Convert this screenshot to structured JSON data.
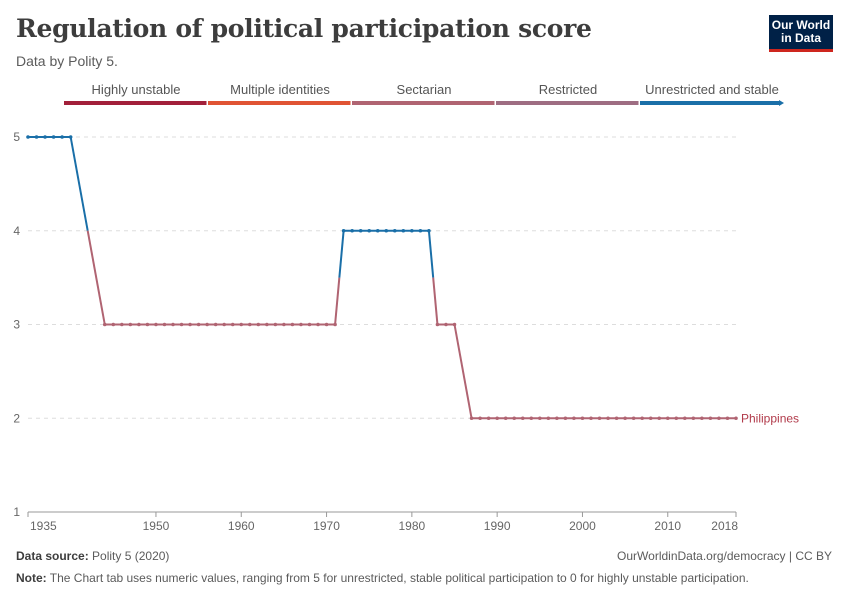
{
  "header": {
    "title": "Regulation of political participation score",
    "subtitle": "Data by Polity 5.",
    "logo_line1": "Our World",
    "logo_line2": "in Data"
  },
  "footer": {
    "source_label": "Data source:",
    "source_value": "Polity 5 (2020)",
    "link": "OurWorldinData.org/democracy | CC BY",
    "note_label": "Note:",
    "note_value": "The Chart tab uses numeric values, ranging from 5 for unrestricted, stable political participation to 0 for highly unstable participation."
  },
  "colors": {
    "unrestricted": "#1a6fa8",
    "sectarian": "#b06472",
    "highly_unstable": "#a2203a",
    "multiple_identities": "#e05434",
    "restricted": "#9e6d82",
    "grid": "#dddddd"
  },
  "chart_data": {
    "type": "line",
    "title": "Regulation of political participation score",
    "xlabel": "",
    "ylabel": "",
    "xlim": [
      1935,
      2018
    ],
    "ylim": [
      1,
      5
    ],
    "x_ticks": [
      1935,
      1950,
      1960,
      1970,
      1980,
      1990,
      2000,
      2010,
      2018
    ],
    "y_ticks": [
      1,
      2,
      3,
      4,
      5
    ],
    "legend": {
      "type": "categorical-color-bar",
      "placement": "top",
      "items": [
        {
          "label": "Highly unstable",
          "color": "#a2203a"
        },
        {
          "label": "Multiple identities",
          "color": "#e05434"
        },
        {
          "label": "Sectarian",
          "color": "#b06472"
        },
        {
          "label": "Restricted",
          "color": "#9e6d82"
        },
        {
          "label": "Unrestricted and stable",
          "color": "#1a6fa8"
        }
      ]
    },
    "series": [
      {
        "name": "Philippines",
        "x": [
          1935,
          1936,
          1937,
          1938,
          1939,
          1940,
          1944,
          1945,
          1946,
          1947,
          1948,
          1949,
          1950,
          1951,
          1952,
          1953,
          1954,
          1955,
          1956,
          1957,
          1958,
          1959,
          1960,
          1961,
          1962,
          1963,
          1964,
          1965,
          1966,
          1967,
          1968,
          1969,
          1970,
          1971,
          1972,
          1973,
          1974,
          1975,
          1976,
          1977,
          1978,
          1979,
          1980,
          1981,
          1982,
          1983,
          1984,
          1985,
          1987,
          1988,
          1989,
          1990,
          1991,
          1992,
          1993,
          1994,
          1995,
          1996,
          1997,
          1998,
          1999,
          2000,
          2001,
          2002,
          2003,
          2004,
          2005,
          2006,
          2007,
          2008,
          2009,
          2010,
          2011,
          2012,
          2013,
          2014,
          2015,
          2016,
          2017,
          2018
        ],
        "values": [
          5,
          5,
          5,
          5,
          5,
          5,
          3,
          3,
          3,
          3,
          3,
          3,
          3,
          3,
          3,
          3,
          3,
          3,
          3,
          3,
          3,
          3,
          3,
          3,
          3,
          3,
          3,
          3,
          3,
          3,
          3,
          3,
          3,
          3,
          4,
          4,
          4,
          4,
          4,
          4,
          4,
          4,
          4,
          4,
          4,
          3,
          3,
          3,
          2,
          2,
          2,
          2,
          2,
          2,
          2,
          2,
          2,
          2,
          2,
          2,
          2,
          2,
          2,
          2,
          2,
          2,
          2,
          2,
          2,
          2,
          2,
          2,
          2,
          2,
          2,
          2,
          2,
          2,
          2,
          2
        ]
      }
    ]
  }
}
